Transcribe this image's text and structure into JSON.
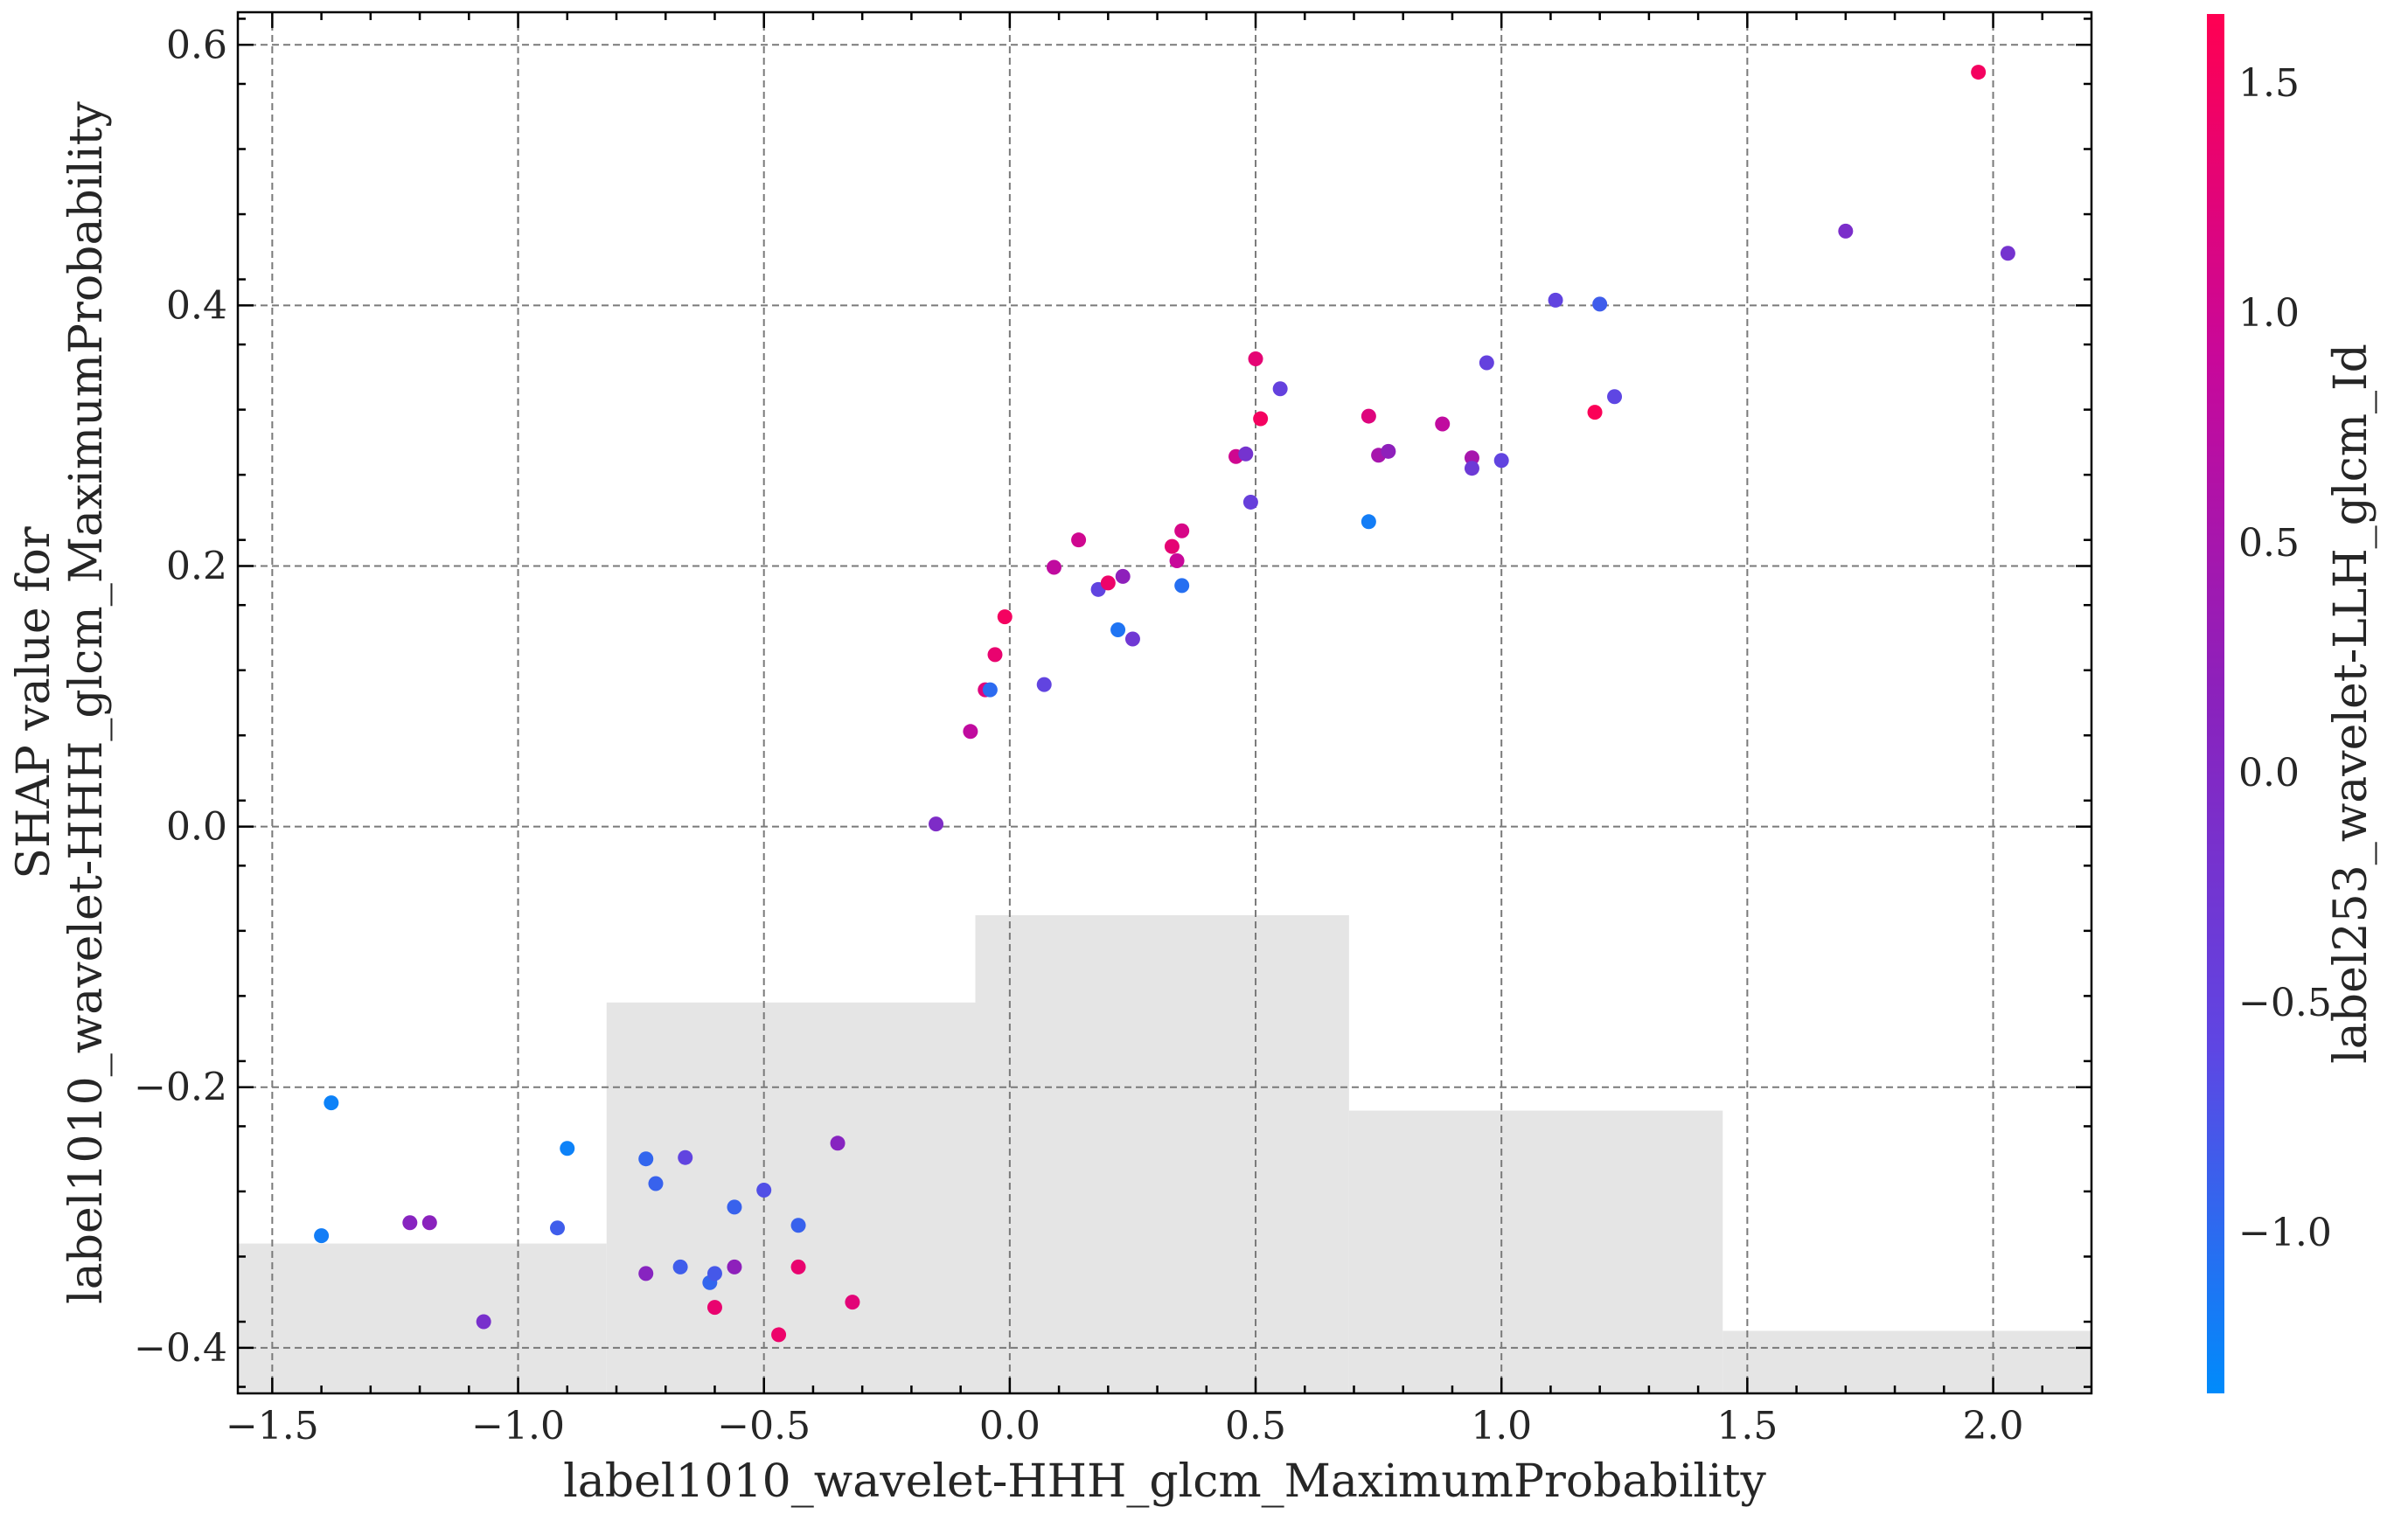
{
  "chart_data": {
    "type": "scatter",
    "title": "",
    "xlabel": "label1010_wavelet-HHH_glcm_MaximumProbability",
    "ylabel_line1": "SHAP value for",
    "ylabel_line2": "label1010_wavelet-HHH_glcm_MaximumProbability",
    "xlim": [
      -1.57,
      2.2
    ],
    "ylim": [
      -0.435,
      0.625
    ],
    "xticks": [
      -1.5,
      -1.0,
      -0.5,
      0.0,
      0.5,
      1.0,
      1.5,
      2.0
    ],
    "xtick_labels": [
      "−1.5",
      "−1.0",
      "−0.5",
      "0.0",
      "0.5",
      "1.0",
      "1.5",
      "2.0"
    ],
    "yticks": [
      -0.4,
      -0.2,
      0.0,
      0.2,
      0.4,
      0.6
    ],
    "ytick_labels": [
      "−0.4",
      "−0.2",
      "0.0",
      "0.2",
      "0.4",
      "0.6"
    ],
    "grid": true,
    "histogram_background": {
      "color": "#e5e5e5",
      "bins": [
        {
          "x0": -1.57,
          "x1": -0.82,
          "top": -0.32
        },
        {
          "x0": -0.82,
          "x1": -0.07,
          "top": -0.135
        },
        {
          "x0": -0.07,
          "x1": 0.69,
          "top": -0.068
        },
        {
          "x0": 0.69,
          "x1": 1.45,
          "top": -0.218
        },
        {
          "x0": 1.45,
          "x1": 2.2,
          "top": -0.387
        }
      ]
    },
    "colorbar": {
      "label": "label253_wavelet-LLH_glcm_Id",
      "range": [
        -1.35,
        1.65
      ],
      "ticks": [
        -1.0,
        -0.5,
        0.0,
        0.5,
        1.0,
        1.5
      ],
      "tick_labels": [
        "−1.0",
        "−0.5",
        "0.0",
        "0.5",
        "1.0",
        "1.5"
      ],
      "colors": [
        "#008bfb",
        "#5e46e3",
        "#8a22bd",
        "#c8089a",
        "#ff0052"
      ]
    },
    "points": [
      {
        "x": -1.38,
        "y": -0.212,
        "c": -1.25
      },
      {
        "x": -1.4,
        "y": -0.314,
        "c": -1.2
      },
      {
        "x": -1.22,
        "y": -0.304,
        "c": 0.1
      },
      {
        "x": -1.18,
        "y": -0.304,
        "c": 0.15
      },
      {
        "x": -1.07,
        "y": -0.38,
        "c": -0.15
      },
      {
        "x": -0.9,
        "y": -0.247,
        "c": -1.25
      },
      {
        "x": -0.92,
        "y": -0.308,
        "c": -0.85
      },
      {
        "x": -0.74,
        "y": -0.255,
        "c": -0.95
      },
      {
        "x": -0.72,
        "y": -0.274,
        "c": -0.9
      },
      {
        "x": -0.74,
        "y": -0.343,
        "c": 0.1
      },
      {
        "x": -0.66,
        "y": -0.254,
        "c": -0.55
      },
      {
        "x": -0.67,
        "y": -0.338,
        "c": -0.85
      },
      {
        "x": -0.61,
        "y": -0.35,
        "c": -0.95
      },
      {
        "x": -0.6,
        "y": -0.343,
        "c": -0.8
      },
      {
        "x": -0.6,
        "y": -0.369,
        "c": 1.35
      },
      {
        "x": -0.56,
        "y": -0.292,
        "c": -0.9
      },
      {
        "x": -0.56,
        "y": -0.338,
        "c": 0.2
      },
      {
        "x": -0.5,
        "y": -0.279,
        "c": -0.7
      },
      {
        "x": -0.47,
        "y": -0.39,
        "c": 1.4
      },
      {
        "x": -0.43,
        "y": -0.306,
        "c": -0.9
      },
      {
        "x": -0.43,
        "y": -0.338,
        "c": 1.35
      },
      {
        "x": -0.35,
        "y": -0.243,
        "c": 0.1
      },
      {
        "x": -0.32,
        "y": -0.365,
        "c": 1.25
      },
      {
        "x": -0.15,
        "y": 0.002,
        "c": -0.05
      },
      {
        "x": -0.08,
        "y": 0.073,
        "c": 0.8
      },
      {
        "x": -0.05,
        "y": 0.105,
        "c": 1.2
      },
      {
        "x": -0.04,
        "y": 0.105,
        "c": -1.0
      },
      {
        "x": -0.03,
        "y": 0.132,
        "c": 1.35
      },
      {
        "x": -0.01,
        "y": 0.161,
        "c": 1.5
      },
      {
        "x": 0.07,
        "y": 0.109,
        "c": -0.55
      },
      {
        "x": 0.09,
        "y": 0.199,
        "c": 0.8
      },
      {
        "x": 0.14,
        "y": 0.22,
        "c": 1.0
      },
      {
        "x": 0.18,
        "y": 0.182,
        "c": -0.55
      },
      {
        "x": 0.2,
        "y": 0.187,
        "c": 1.4
      },
      {
        "x": 0.22,
        "y": 0.151,
        "c": -1.1
      },
      {
        "x": 0.23,
        "y": 0.192,
        "c": 0.2
      },
      {
        "x": 0.25,
        "y": 0.144,
        "c": -0.3
      },
      {
        "x": 0.33,
        "y": 0.215,
        "c": 1.3
      },
      {
        "x": 0.34,
        "y": 0.204,
        "c": 0.9
      },
      {
        "x": 0.35,
        "y": 0.185,
        "c": -1.05
      },
      {
        "x": 0.35,
        "y": 0.227,
        "c": 1.1
      },
      {
        "x": 0.46,
        "y": 0.284,
        "c": 1.0
      },
      {
        "x": 0.48,
        "y": 0.286,
        "c": -0.2
      },
      {
        "x": 0.49,
        "y": 0.249,
        "c": -0.45
      },
      {
        "x": 0.5,
        "y": 0.359,
        "c": 1.3
      },
      {
        "x": 0.51,
        "y": 0.313,
        "c": 1.5
      },
      {
        "x": 0.55,
        "y": 0.336,
        "c": -0.5
      },
      {
        "x": 0.73,
        "y": 0.234,
        "c": -1.2
      },
      {
        "x": 0.73,
        "y": 0.315,
        "c": 1.2
      },
      {
        "x": 0.75,
        "y": 0.285,
        "c": 0.5
      },
      {
        "x": 0.77,
        "y": 0.288,
        "c": 0.2
      },
      {
        "x": 0.88,
        "y": 0.309,
        "c": 0.8
      },
      {
        "x": 0.94,
        "y": 0.283,
        "c": 0.5
      },
      {
        "x": 0.94,
        "y": 0.275,
        "c": -0.35
      },
      {
        "x": 0.97,
        "y": 0.356,
        "c": -0.5
      },
      {
        "x": 1.0,
        "y": 0.281,
        "c": -0.55
      },
      {
        "x": 1.11,
        "y": 0.404,
        "c": -0.55
      },
      {
        "x": 1.19,
        "y": 0.318,
        "c": 1.6
      },
      {
        "x": 1.2,
        "y": 0.401,
        "c": -0.85
      },
      {
        "x": 1.23,
        "y": 0.33,
        "c": -0.6
      },
      {
        "x": 1.7,
        "y": 0.457,
        "c": -0.1
      },
      {
        "x": 1.97,
        "y": 0.579,
        "c": 1.5
      },
      {
        "x": 2.03,
        "y": 0.44,
        "c": -0.2
      }
    ]
  }
}
